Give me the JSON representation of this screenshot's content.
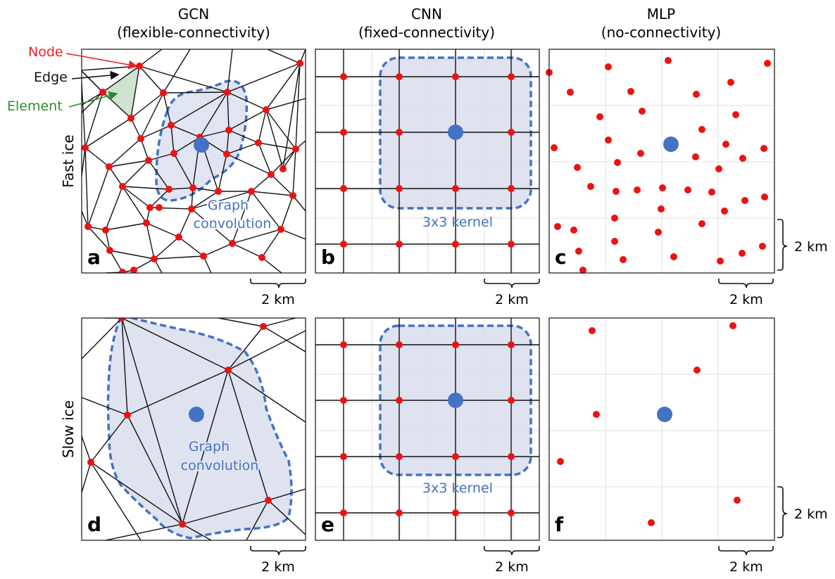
{
  "columns": [
    {
      "title": "GCN",
      "subtitle": "(flexible-connectivity)"
    },
    {
      "title": "CNN",
      "subtitle": "(fixed-connectivity)"
    },
    {
      "title": "MLP",
      "subtitle": "(no-connectivity)"
    }
  ],
  "rows": [
    {
      "label": "Fast ice"
    },
    {
      "label": "Slow ice"
    }
  ],
  "legend": {
    "node": "Node",
    "edge": "Edge",
    "element": "Element"
  },
  "panels": {
    "a": {
      "letter": "a",
      "conv_line1": "Graph",
      "conv_line2": "convolution"
    },
    "b": {
      "letter": "b",
      "kernel": "3x3 kernel"
    },
    "c": {
      "letter": "c"
    },
    "d": {
      "letter": "d",
      "conv_line1": "Graph",
      "conv_line2": "convolution"
    },
    "e": {
      "letter": "e",
      "kernel": "3x3 kernel"
    },
    "f": {
      "letter": "f"
    }
  },
  "scale": {
    "label": "2 km"
  },
  "colors": {
    "node": "#ee1111",
    "center": "#4472c4",
    "kernel_fill": "#d7dcec",
    "kernel_stroke": "#4472c4",
    "element_fill": "#cfe3cf",
    "node_label": "#e8212a",
    "element_label": "#2e8b2e"
  }
}
